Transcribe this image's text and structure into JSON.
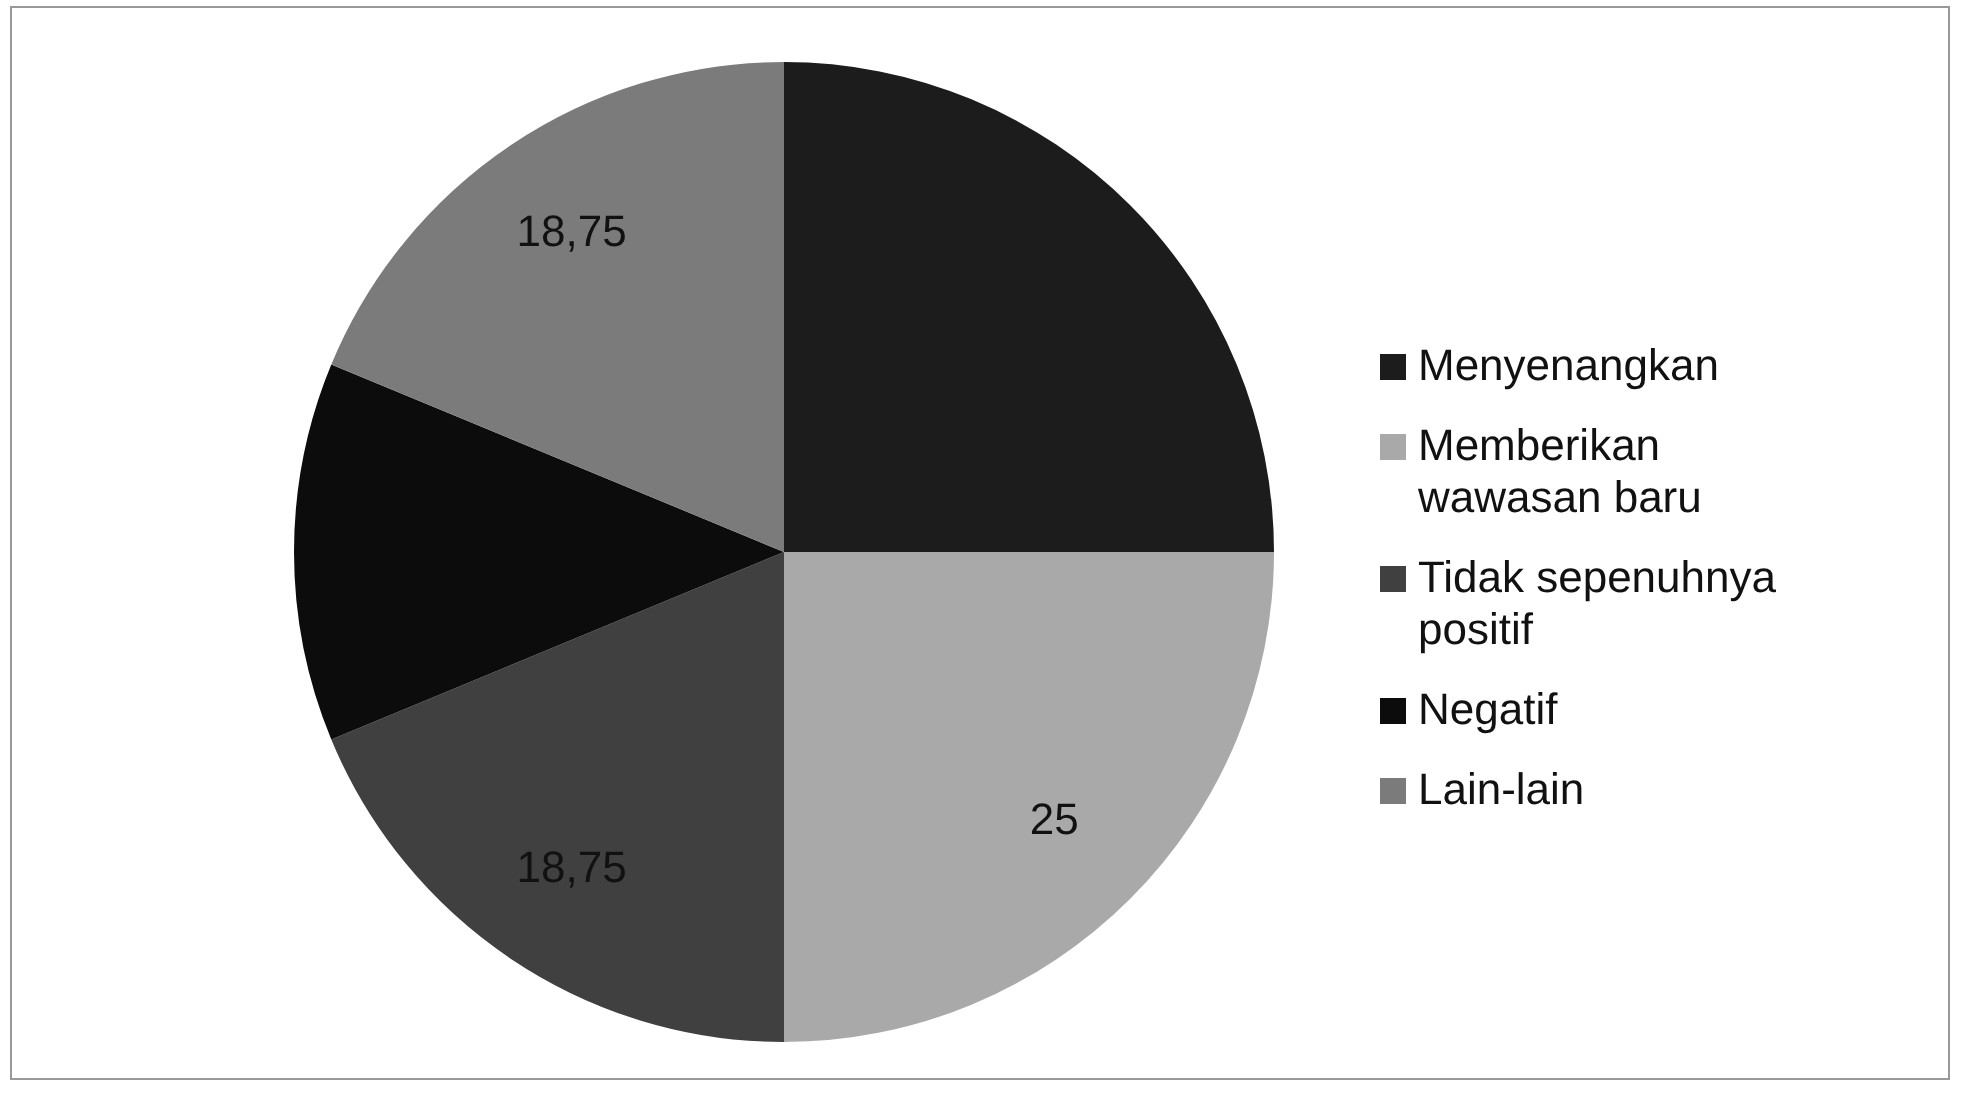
{
  "chart_data": {
    "type": "pie",
    "categories": [
      "Menyenangkan",
      "Memberikan wawasan baru",
      "Tidak sepenuhnya positif",
      "Negatif",
      "Lain-lain"
    ],
    "values": [
      25,
      25,
      18.75,
      12.5,
      18.75
    ],
    "colors": [
      "#1c1c1c",
      "#a9a9a9",
      "#404040",
      "#0c0c0c",
      "#7b7b7b"
    ],
    "value_labels": [
      null,
      "25",
      "18,75",
      null,
      "18,75"
    ],
    "legend": "right"
  }
}
